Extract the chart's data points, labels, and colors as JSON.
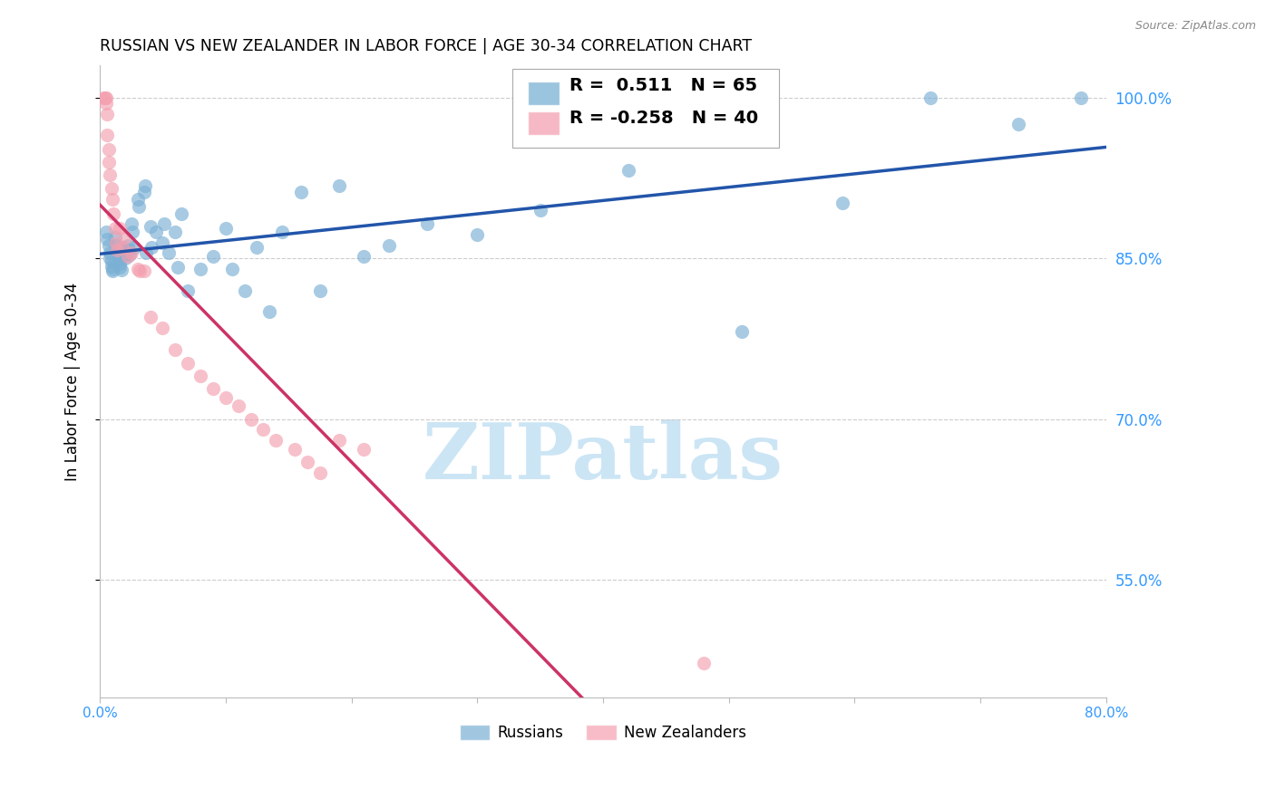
{
  "title": "RUSSIAN VS NEW ZEALANDER IN LABOR FORCE | AGE 30-34 CORRELATION CHART",
  "source": "Source: ZipAtlas.com",
  "ylabel": "In Labor Force | Age 30-34",
  "xmin": 0.0,
  "xmax": 0.8,
  "ymin": 0.44,
  "ymax": 1.03,
  "yticks": [
    0.55,
    0.7,
    0.85,
    1.0
  ],
  "ytick_labels": [
    "55.0%",
    "70.0%",
    "85.0%",
    "100.0%"
  ],
  "grid_color": "#cccccc",
  "watermark": "ZIPatlas",
  "watermark_color": "#cce5f5",
  "blue_color": "#7ab0d4",
  "pink_color": "#f4a0b0",
  "blue_line_color": "#2255aa",
  "pink_line_color": "#cc3366",
  "blue_R": 0.511,
  "blue_N": 65,
  "pink_R": -0.258,
  "pink_N": 40,
  "blue_scatter_x": [
    0.005,
    0.006,
    0.007,
    0.008,
    0.008,
    0.009,
    0.009,
    0.01,
    0.01,
    0.012,
    0.013,
    0.014,
    0.015,
    0.015,
    0.016,
    0.016,
    0.017,
    0.018,
    0.019,
    0.02,
    0.02,
    0.021,
    0.022,
    0.023,
    0.024,
    0.025,
    0.026,
    0.027,
    0.03,
    0.031,
    0.035,
    0.036,
    0.037,
    0.04,
    0.041,
    0.045,
    0.05,
    0.051,
    0.055,
    0.06,
    0.062,
    0.065,
    0.07,
    0.08,
    0.09,
    0.1,
    0.105,
    0.115,
    0.125,
    0.135,
    0.145,
    0.16,
    0.175,
    0.19,
    0.21,
    0.23,
    0.26,
    0.3,
    0.35,
    0.42,
    0.51,
    0.59,
    0.66,
    0.73,
    0.78
  ],
  "blue_scatter_y": [
    0.875,
    0.868,
    0.862,
    0.855,
    0.85,
    0.848,
    0.843,
    0.84,
    0.838,
    0.87,
    0.862,
    0.858,
    0.853,
    0.849,
    0.845,
    0.842,
    0.839,
    0.86,
    0.858,
    0.854,
    0.85,
    0.855,
    0.862,
    0.858,
    0.854,
    0.882,
    0.875,
    0.86,
    0.905,
    0.898,
    0.912,
    0.918,
    0.855,
    0.88,
    0.86,
    0.875,
    0.865,
    0.882,
    0.855,
    0.875,
    0.842,
    0.892,
    0.82,
    0.84,
    0.852,
    0.878,
    0.84,
    0.82,
    0.86,
    0.8,
    0.875,
    0.912,
    0.82,
    0.918,
    0.852,
    0.862,
    0.882,
    0.872,
    0.895,
    0.932,
    0.782,
    0.902,
    1.0,
    0.975,
    1.0
  ],
  "pink_scatter_x": [
    0.003,
    0.004,
    0.005,
    0.005,
    0.006,
    0.006,
    0.007,
    0.007,
    0.008,
    0.009,
    0.01,
    0.011,
    0.012,
    0.013,
    0.014,
    0.016,
    0.018,
    0.02,
    0.022,
    0.025,
    0.03,
    0.032,
    0.035,
    0.04,
    0.05,
    0.06,
    0.07,
    0.08,
    0.09,
    0.1,
    0.11,
    0.12,
    0.13,
    0.14,
    0.155,
    0.165,
    0.175,
    0.19,
    0.21,
    0.48
  ],
  "pink_scatter_y": [
    1.0,
    1.0,
    1.0,
    0.995,
    0.985,
    0.965,
    0.952,
    0.94,
    0.928,
    0.915,
    0.905,
    0.892,
    0.878,
    0.865,
    0.858,
    0.878,
    0.86,
    0.87,
    0.852,
    0.855,
    0.84,
    0.838,
    0.838,
    0.795,
    0.785,
    0.765,
    0.752,
    0.74,
    0.728,
    0.72,
    0.712,
    0.7,
    0.69,
    0.68,
    0.672,
    0.66,
    0.65,
    0.68,
    0.672,
    0.472
  ],
  "right_axis_color": "#3399ff",
  "xtick_color": "#3399ff"
}
